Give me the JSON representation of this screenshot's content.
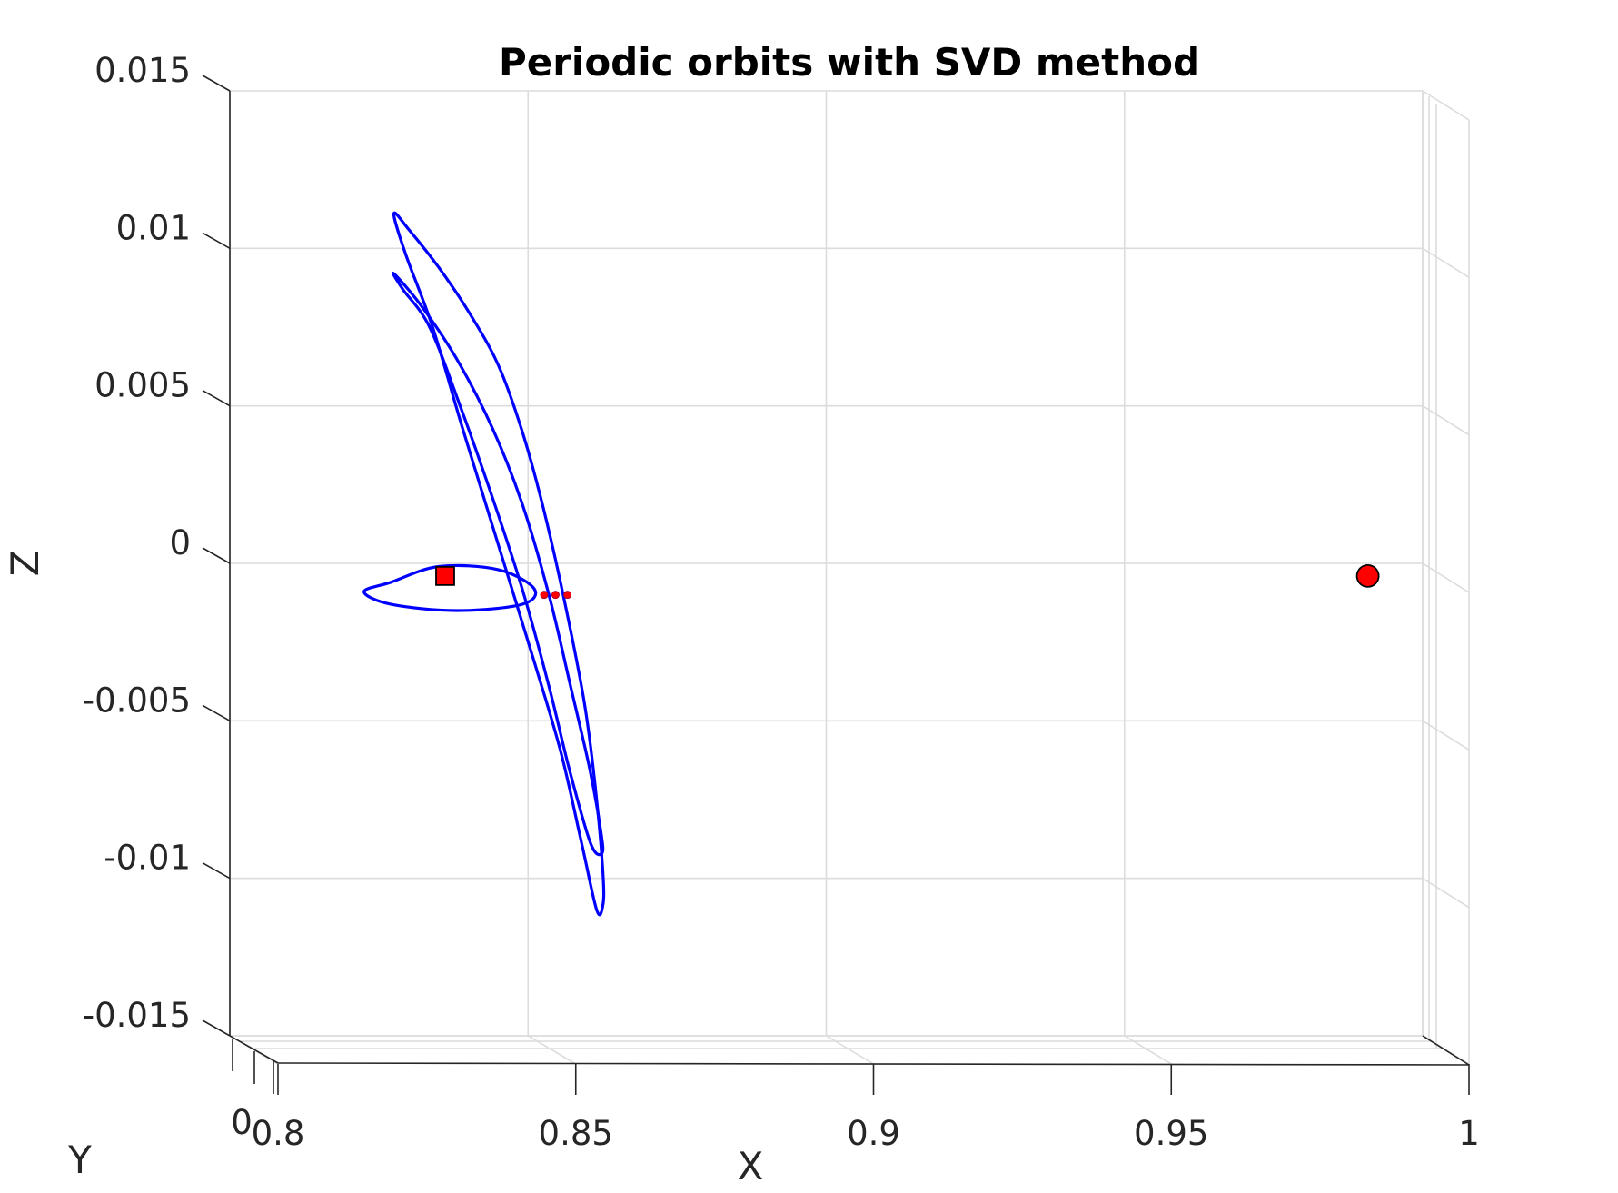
{
  "chart_data": {
    "type": "line",
    "title": "Periodic orbits with SVD method",
    "xlabel": "X",
    "ylabel": "Y",
    "zlabel": "Z",
    "xlim": [
      0.8,
      1.0
    ],
    "zlim": [
      -0.015,
      0.015
    ],
    "x_ticks": [
      "0.8",
      "0.85",
      "0.9",
      "0.95",
      "1"
    ],
    "y_ticks": [
      "0"
    ],
    "z_ticks": [
      "0.015",
      "0.01",
      "0.005",
      "0",
      "-0.005",
      "-0.01",
      "-0.015"
    ],
    "grid": true,
    "view": "3-D, nearly along the Y axis",
    "colors": {
      "orbit": "#0000ff",
      "marker": "#ff0000",
      "marker_edge": "#000000"
    },
    "series": [
      {
        "type": "line",
        "color": "#0000ff",
        "points": [
          [
            0.827,
            -0.0006
          ],
          [
            0.835,
            -0.0001
          ],
          [
            0.845,
            -0.0002
          ],
          [
            0.851,
            -0.0008
          ],
          [
            0.849,
            -0.0013
          ],
          [
            0.838,
            -0.0015
          ],
          [
            0.827,
            -0.0013
          ],
          [
            0.8225,
            -0.0009
          ],
          [
            0.827,
            -0.0006
          ]
        ]
      },
      {
        "type": "line",
        "color": "#0000ff",
        "points": [
          [
            0.8275,
            0.0111
          ],
          [
            0.83,
            0.0106
          ],
          [
            0.835,
            0.0094
          ],
          [
            0.84,
            0.008
          ],
          [
            0.845,
            0.0063
          ],
          [
            0.849,
            0.0042
          ],
          [
            0.8525,
            0.0018
          ],
          [
            0.856,
            -0.0011
          ],
          [
            0.8595,
            -0.0045
          ],
          [
            0.8615,
            -0.0075
          ],
          [
            0.8626,
            -0.01
          ],
          [
            0.8625,
            -0.0109
          ],
          [
            0.8615,
            -0.011
          ],
          [
            0.859,
            -0.0089
          ],
          [
            0.8555,
            -0.006
          ],
          [
            0.851,
            -0.0031
          ],
          [
            0.845,
            0.0006
          ],
          [
            0.839,
            0.0043
          ],
          [
            0.834,
            0.0075
          ],
          [
            0.8295,
            0.0098
          ],
          [
            0.8275,
            0.0111
          ]
        ]
      },
      {
        "type": "line",
        "color": "#0000ff",
        "points": [
          [
            0.8275,
            0.0092
          ],
          [
            0.832,
            0.0082
          ],
          [
            0.838,
            0.0065
          ],
          [
            0.844,
            0.0043
          ],
          [
            0.849,
            0.0019
          ],
          [
            0.8535,
            -0.001
          ],
          [
            0.857,
            -0.0038
          ],
          [
            0.8603,
            -0.0065
          ],
          [
            0.8622,
            -0.0085
          ],
          [
            0.8624,
            -0.0092
          ],
          [
            0.8605,
            -0.0089
          ],
          [
            0.857,
            -0.0066
          ],
          [
            0.8535,
            -0.0039
          ],
          [
            0.849,
            -0.0008
          ],
          [
            0.844,
            0.0021
          ],
          [
            0.8388,
            0.0049
          ],
          [
            0.8335,
            0.0075
          ],
          [
            0.829,
            0.0087
          ],
          [
            0.8275,
            0.0092
          ]
        ]
      }
    ],
    "markers": [
      {
        "shape": "square",
        "color": "#ff0000",
        "x": 0.8361,
        "z": -0.0004
      },
      {
        "shape": "circle",
        "color": "#ff0000",
        "x": 0.9908,
        "z": -0.0004
      },
      {
        "shape": "dot",
        "color": "#ff0000",
        "x": 0.8527,
        "z": -0.001
      },
      {
        "shape": "dot",
        "color": "#ff0000",
        "x": 0.8546,
        "z": -0.001
      },
      {
        "shape": "dot",
        "color": "#ff0000",
        "x": 0.8566,
        "z": -0.001
      }
    ]
  }
}
